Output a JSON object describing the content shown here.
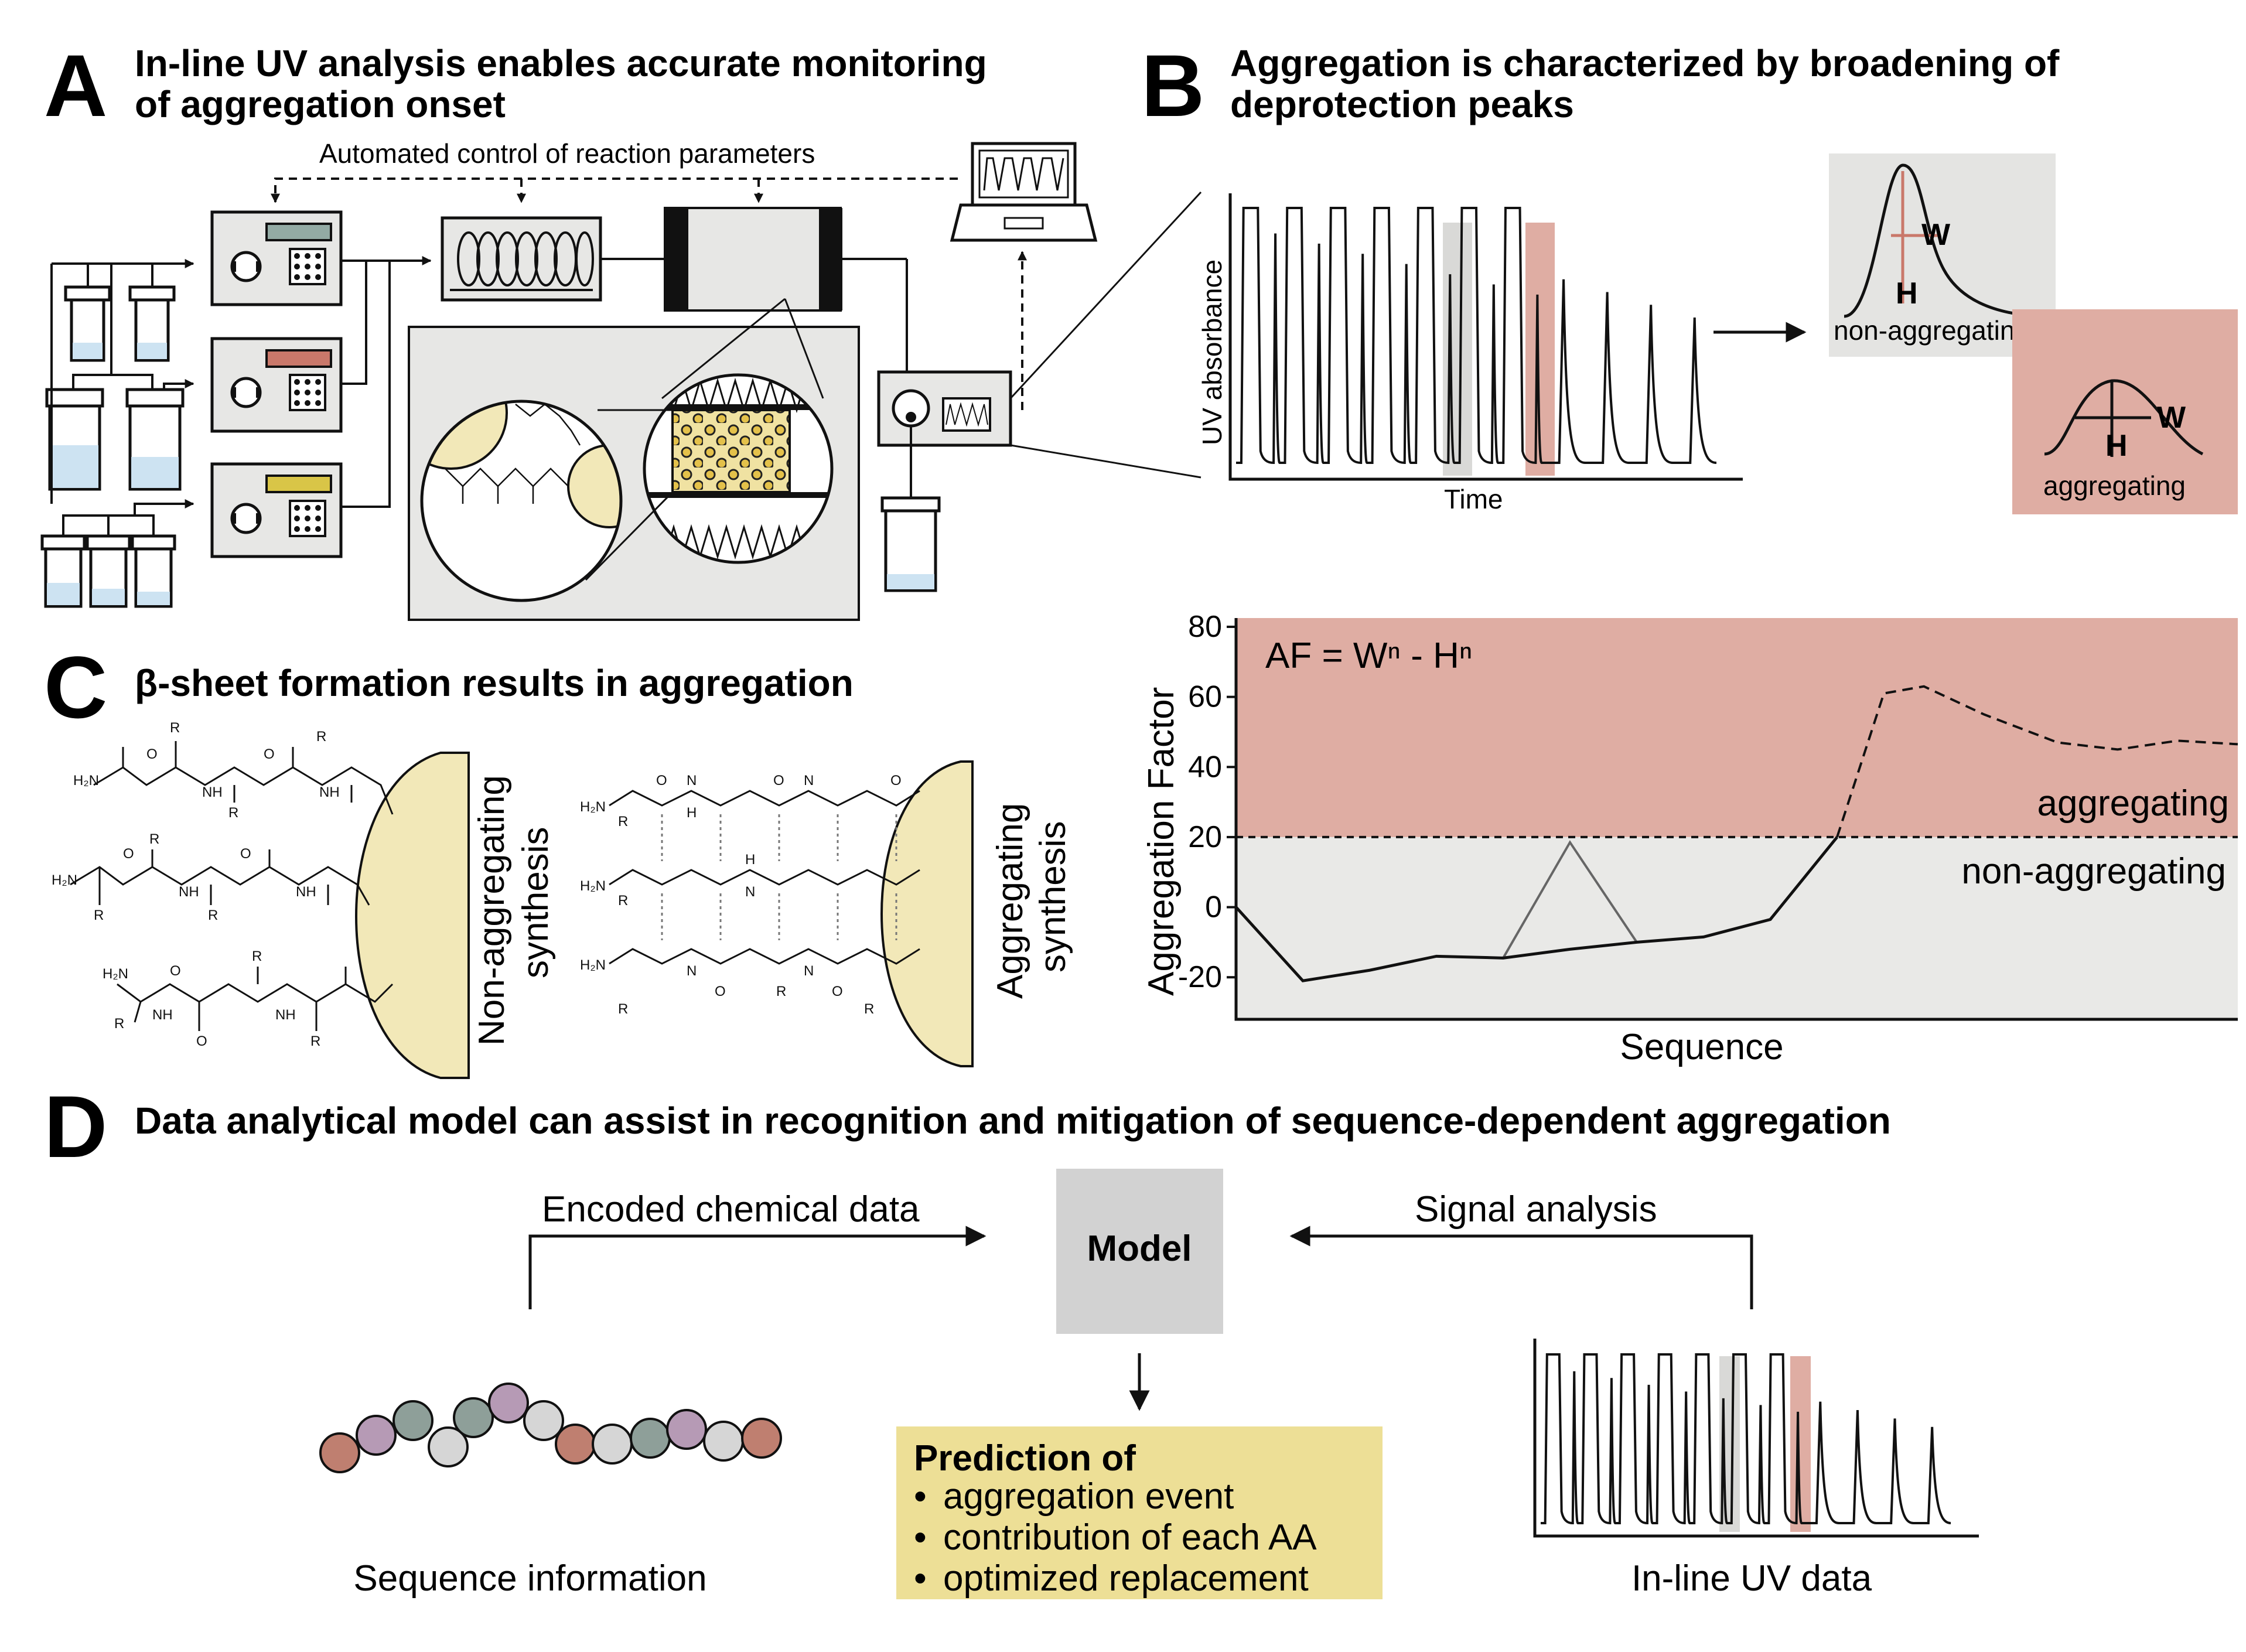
{
  "panel_a": {
    "letter": "A",
    "title_line1": "In-line UV analysis enables accurate monitoring",
    "title_line2": "of aggregation onset",
    "automated_label": "Automated control of reaction parameters"
  },
  "panel_b": {
    "letter": "B",
    "title_line1": "Aggregation is characterized by broadening of",
    "title_line2": "deprotection peaks",
    "ylabel": "UV absorbance",
    "xlabel": "Time",
    "non_agg_label": "non-aggregating",
    "agg_label": "aggregating",
    "w_label": "W",
    "h_label": "H",
    "grey_fill": "#e4e4e2",
    "pink_fill": "#dfada3"
  },
  "panel_c": {
    "letter": "C",
    "title": "β-sheet formation results in aggregation",
    "non_agg_line1": "Non-aggregating",
    "non_agg_line2": "synthesis",
    "agg_line1": "Aggregating",
    "agg_line2": "synthesis",
    "chem": {
      "h2n": "H₂N",
      "nh": "NH",
      "n": "N",
      "h": "H",
      "o": "O",
      "r": "R"
    }
  },
  "chart_data": {
    "type": "line",
    "ylabel": "Aggregation Factor",
    "xlabel": "Sequence",
    "formula": "AF = Wⁿ - Hⁿ",
    "ylim": [
      -32,
      80
    ],
    "yticks": [
      80,
      60,
      40,
      20,
      0,
      -20
    ],
    "threshold": 20,
    "region_upper_label": "aggregating",
    "region_lower_label": "non-aggregating",
    "solid_series": [
      [
        0,
        0
      ],
      [
        1,
        -21
      ],
      [
        2,
        -18
      ],
      [
        3,
        -14
      ],
      [
        4,
        -14.5
      ],
      [
        5,
        -12
      ],
      [
        6,
        -10
      ],
      [
        7,
        -8.5
      ],
      [
        8,
        -3.5
      ],
      [
        9,
        20
      ]
    ],
    "dashed_series": [
      [
        9,
        20
      ],
      [
        9.7,
        61
      ],
      [
        10.3,
        63
      ],
      [
        11.2,
        55
      ],
      [
        12.3,
        47
      ],
      [
        13.2,
        45
      ],
      [
        14.1,
        47.5
      ],
      [
        15,
        46.5
      ]
    ],
    "triangle": [
      [
        4,
        -14.5
      ],
      [
        5,
        18.5
      ],
      [
        6,
        -10
      ]
    ],
    "upper_fill": "#dfada3",
    "lower_fill": "#e9e9e7"
  },
  "panel_d": {
    "letter": "D",
    "title": "Data analytical model can assist in recognition and mitigation of sequence-dependent aggregation",
    "encoded_label": "Encoded chemical data",
    "signal_label": "Signal analysis",
    "model_label": "Model",
    "sequence_label": "Sequence information",
    "uv_label": "In-line UV data",
    "prediction_title": "Prediction of",
    "prediction_items": [
      "aggregation event",
      "contribution of each  AA",
      "optimized replacement"
    ],
    "prediction_fill": "#eddf96",
    "model_fill": "#d2d2d2",
    "bead_colors": [
      "#bf7f70",
      "#b69ab5",
      "#8e9f99",
      "#d6d6d6"
    ]
  }
}
